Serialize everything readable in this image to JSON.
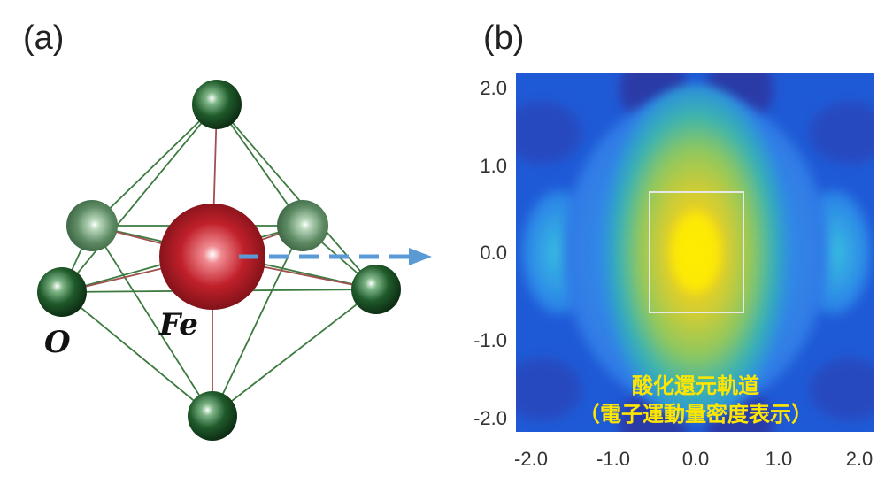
{
  "panels": {
    "a": "(a)",
    "b": "(b)"
  },
  "atoms": {
    "oxygen": "O",
    "iron": "Fe"
  },
  "plot": {
    "y_ticks": [
      "2.0",
      "1.0",
      "0.0",
      "-1.0",
      "-2.0"
    ],
    "x_ticks": [
      "-2.0",
      "-1.0",
      "0.0",
      "1.0",
      "2.0"
    ],
    "caption_line1": "酸化還元軌道",
    "caption_line2": "（電子運動量密度表示）"
  },
  "colors": {
    "oxygen_dark": "#1f5a2a",
    "oxygen_light": "#5d8a63",
    "iron": "#c0202a",
    "bond_green": "#3c7a40",
    "bond_red": "#a05050",
    "arrow": "#5b9bd5",
    "map_background": "#1f5ad6",
    "map_peak": "#ffee00"
  }
}
